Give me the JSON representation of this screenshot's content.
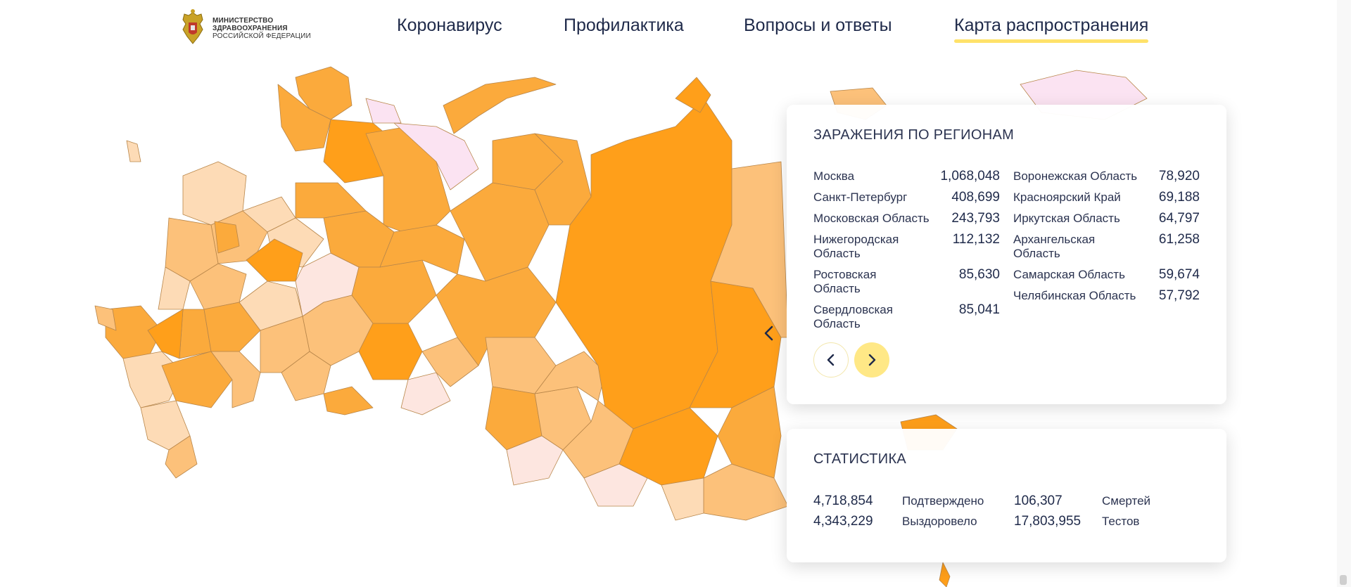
{
  "header": {
    "logo_lines": [
      "МИНИСТЕРСТВО",
      "ЗДРАВООХРАНЕНИЯ",
      "РОССИЙСКОЙ ФЕДЕРАЦИИ"
    ],
    "nav": [
      {
        "label": "Коронавирус",
        "active": false
      },
      {
        "label": "Профилактика",
        "active": false
      },
      {
        "label": "Вопросы и ответы",
        "active": false
      },
      {
        "label": "Карта распространения",
        "active": true
      }
    ]
  },
  "regions_panel": {
    "title": "ЗАРАЖЕНИЯ ПО РЕГИОНАМ",
    "left_column": [
      {
        "name": "Москва",
        "value": "1,068,048"
      },
      {
        "name": "Санкт-Петербург",
        "value": "408,699"
      },
      {
        "name": "Московская Область",
        "value": "243,793"
      },
      {
        "name": "Нижегородская Область",
        "value": "112,132"
      },
      {
        "name": "Ростовская Область",
        "value": "85,630"
      },
      {
        "name": "Свердловская Область",
        "value": "85,041"
      }
    ],
    "right_column": [
      {
        "name": "Воронежская Область",
        "value": "78,920"
      },
      {
        "name": "Красноярский Край",
        "value": "69,188"
      },
      {
        "name": "Иркутская Область",
        "value": "64,797"
      },
      {
        "name": "Архангельская Область",
        "value": "61,258"
      },
      {
        "name": "Самарская Область",
        "value": "59,674"
      },
      {
        "name": "Челябинская Область",
        "value": "57,792"
      }
    ]
  },
  "stats_panel": {
    "title": "СТАТИСТИКА",
    "confirmed": {
      "value": "4,718,854",
      "label": "Подтверждено"
    },
    "recovered": {
      "value": "4,343,229",
      "label": "Выздоровело"
    },
    "deaths": {
      "value": "106,307",
      "label": "Смертей"
    },
    "tests": {
      "value": "17,803,955",
      "label": "Тестов"
    }
  },
  "colors": {
    "accent_yellow": "#ffe26a",
    "map_darkest": "#ff9f1a",
    "map_dark": "#fbaa3c",
    "map_mid": "#fcc17a",
    "map_light": "#fddbb6",
    "map_lightest": "#fde6e0",
    "map_pink": "#fbe3f2"
  },
  "icons": {
    "carousel_prev": "chevron-left-icon",
    "carousel_next": "chevron-right-icon",
    "map_prev": "chevron-left-icon",
    "logo": "coat-of-arms-icon"
  }
}
